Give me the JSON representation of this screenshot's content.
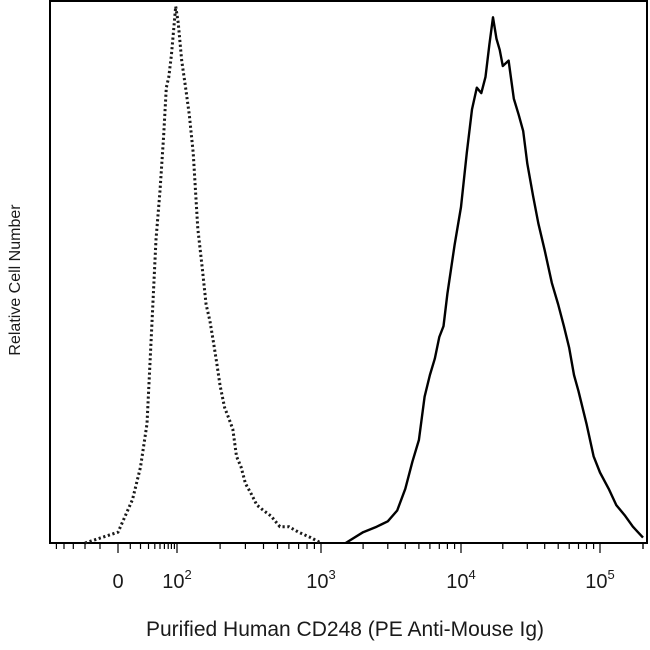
{
  "chart_data": {
    "type": "line",
    "title": "",
    "xlabel": "Purified Human CD248 (PE Anti-Mouse Ig)",
    "ylabel": "Relative Cell Number",
    "x_scale": "biexponential",
    "xlim": [
      -60,
      200000
    ],
    "ylim": [
      0,
      100
    ],
    "grid": false,
    "legend": "none",
    "x_ticks": [
      {
        "value": 0,
        "base": "0",
        "exp": ""
      },
      {
        "value": 100,
        "base": "10",
        "exp": "2"
      },
      {
        "value": 1000,
        "base": "10",
        "exp": "3"
      },
      {
        "value": 10000,
        "base": "10",
        "exp": "4"
      },
      {
        "value": 100000,
        "base": "10",
        "exp": "5"
      }
    ],
    "series": [
      {
        "style": "dotted",
        "color": "#1a1a1a",
        "x": [
          -20,
          0,
          12,
          20,
          28,
          35,
          42,
          50,
          58,
          65,
          72,
          80,
          88,
          95,
          102,
          108,
          115,
          122,
          130,
          140,
          150,
          160,
          170,
          180,
          190,
          200,
          215,
          230,
          245,
          260,
          280,
          300,
          330,
          360,
          400,
          450,
          520,
          600,
          700,
          850,
          1000
        ],
        "y": [
          0,
          2,
          8,
          14,
          22,
          40,
          56,
          65,
          75,
          84,
          86,
          90,
          95,
          99,
          96,
          89,
          84,
          79,
          72,
          58,
          51,
          44,
          41,
          37,
          33,
          29,
          25,
          23,
          21,
          16,
          14,
          11,
          9,
          7,
          6,
          5,
          3,
          3,
          2,
          1,
          0
        ]
      },
      {
        "style": "solid",
        "color": "#000000",
        "x": [
          1500,
          2000,
          2500,
          3000,
          3500,
          4000,
          4500,
          5000,
          5500,
          6000,
          6500,
          7000,
          7500,
          8000,
          9000,
          10000,
          11000,
          12000,
          13000,
          14000,
          15000,
          16000,
          17000,
          18000,
          19000,
          20000,
          22000,
          24000,
          26000,
          28000,
          30000,
          33000,
          36000,
          40000,
          45000,
          50000,
          55000,
          60000,
          65000,
          70000,
          80000,
          90000,
          100000,
          115000,
          130000,
          150000,
          170000,
          200000
        ],
        "y": [
          0,
          2,
          3,
          4,
          6,
          10,
          15,
          19,
          27,
          31,
          34,
          38,
          40,
          46,
          55,
          62,
          72,
          80,
          84,
          83,
          86,
          92,
          97,
          93,
          91,
          88,
          89,
          82,
          79,
          76,
          70,
          64,
          59,
          54,
          48,
          44,
          40,
          36,
          31,
          28,
          22,
          16,
          13,
          10,
          7,
          5,
          3,
          1
        ]
      }
    ]
  }
}
